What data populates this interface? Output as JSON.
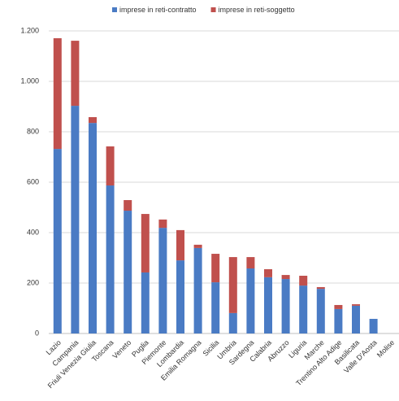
{
  "chart_data": {
    "type": "stacked_bar",
    "categories": [
      "Lazio",
      "Campania",
      "Friuli Venezia Giulia",
      "Toscana",
      "Veneto",
      "Puglia",
      "Piemonte",
      "Lombardia",
      "Emilia Romagna",
      "Sicilia",
      "Umbria",
      "Sardegna",
      "Calabria",
      "Abruzzo",
      "Liguria",
      "Marche",
      "Trentino Alto Adige",
      "Basilicata",
      "Valle D'Aosta",
      "Molise"
    ],
    "series": [
      {
        "name": "imprese in reti-contratto",
        "color": "#4a7bc4",
        "values": [
          732,
          903,
          835,
          587,
          487,
          242,
          419,
          290,
          339,
          203,
          81,
          258,
          223,
          216,
          190,
          177,
          97,
          110,
          58,
          null
        ]
      },
      {
        "name": "imprese in reti-soggetto",
        "color": "#c0504d",
        "values": [
          439,
          258,
          23,
          155,
          42,
          232,
          33,
          120,
          13,
          113,
          222,
          45,
          32,
          16,
          39,
          7,
          16,
          6,
          0,
          null
        ]
      }
    ],
    "ylim": [
      0,
      1200
    ],
    "yticks": [
      0,
      200,
      400,
      600,
      800,
      {
        "value": 1000,
        "label": "1.000"
      },
      {
        "value": 1200,
        "label": "1.200"
      }
    ],
    "grid": true,
    "legend": "top"
  }
}
